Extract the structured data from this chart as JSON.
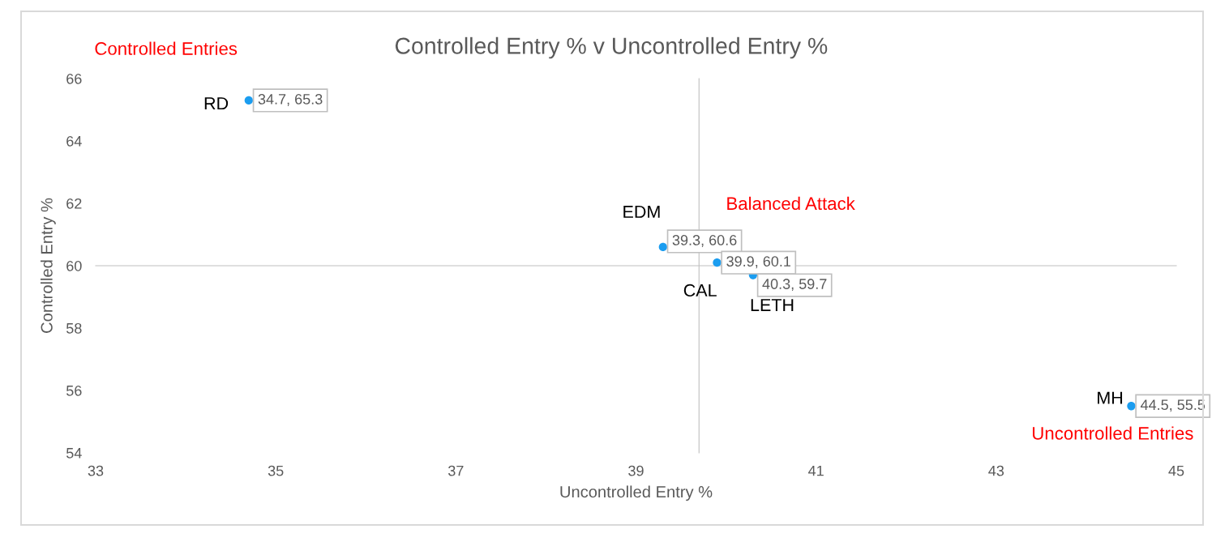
{
  "chart_data": {
    "type": "scatter",
    "title": "Controlled Entry % v Uncontrolled Entry %",
    "xlabel": "Uncontrolled Entry %",
    "ylabel": "Controlled Entry %",
    "x": [
      34.7,
      39.3,
      39.9,
      40.3,
      44.5
    ],
    "values": [
      65.3,
      60.6,
      60.1,
      59.7,
      55.5
    ],
    "color": "#1b9df0",
    "marker": "circle",
    "value_labels": [
      "34.7, 65.3",
      "39.3, 60.6",
      "39.9, 60.1",
      "40.3, 59.7",
      "44.5, 55.5"
    ],
    "xlim": [
      33,
      45
    ],
    "xticks": [
      33,
      35,
      37,
      39,
      41,
      43,
      45
    ],
    "ylim": [
      54,
      66
    ],
    "yticks": [
      54,
      56,
      58,
      60,
      62,
      64,
      66
    ],
    "ref_lines": [
      {
        "axis": "x",
        "value": 39.7,
        "color": "#bfbfbf"
      },
      {
        "axis": "y",
        "value": 60,
        "color": "#bfbfbf"
      }
    ],
    "annotations": [
      "Controlled Entries",
      "Balanced Attack",
      "Uncontrolled Entries",
      {
        "text": "RD",
        "x": 34.7,
        "y": 65.3
      },
      {
        "text": "EDM",
        "x": 39.3,
        "y": 60.6
      },
      {
        "text": "CAL",
        "x": 39.9,
        "y": 60.1
      },
      {
        "text": "LETH",
        "x": 40.3,
        "y": 59.7
      },
      {
        "text": "MH",
        "x": 44.5,
        "y": 55.5
      }
    ]
  }
}
